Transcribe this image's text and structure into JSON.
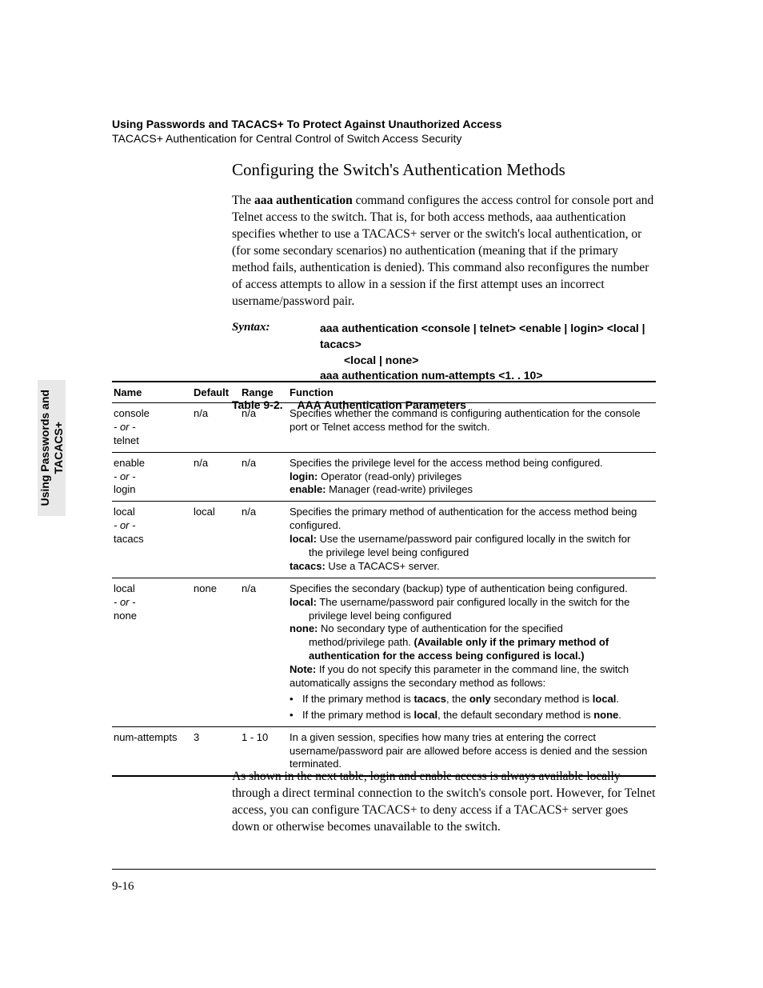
{
  "sideTab": {
    "line1": "Using Passwords and",
    "line2": "TACACS+"
  },
  "header": {
    "title": "Using Passwords and TACACS+ To Protect Against Unauthorized Access",
    "subtitle": "TACACS+ Authentication for Central Control of Switch Access Security"
  },
  "sectionTitle": "Configuring the Switch's Authentication Methods",
  "intro": {
    "pre": "The ",
    "bold": "aaa authentication",
    "post": " command configures the access control for console port and Telnet access to the switch. That is, for both access methods, aaa authentication specifies whether to use a TACACS+ server or the switch's local authentication, or (for some secondary scenarios) no authentication (meaning that if the primary method fails, authentication is denied). This command also reconfigures the number of access attempts to allow in a session if the first attempt uses an incorrect username/password pair."
  },
  "syntax": {
    "label": "Syntax:",
    "line1": "aaa authentication <console | telnet> <enable | login> <local | tacacs>",
    "line1b": "<local | none>",
    "line2": "aaa authentication num-attempts <1. . 10>"
  },
  "tableCaption": {
    "num": "Table 9-2.",
    "title": "AAA Authentication Parameters"
  },
  "cols": {
    "name": "Name",
    "default": "Default",
    "range": "Range",
    "function": "Function"
  },
  "rows": [
    {
      "n1": "console",
      "nor": "- or -",
      "n2": "telnet",
      "default": "n/a",
      "range": "n/a",
      "func": "Specifies whether the command is configuring authentication for the console port or Telnet access method for the switch."
    },
    {
      "n1": "enable",
      "nor": "- or -",
      "n2": "login",
      "default": "n/a",
      "range": "n/a",
      "func": "Specifies the privilege level for the access method being configured.",
      "sub1b": "login:",
      "sub1t": "  Operator (read-only) privileges",
      "sub2b": "enable:",
      "sub2t": " Manager (read-write) privileges"
    },
    {
      "n1": "local",
      "nor": "- or -",
      "n2": "tacacs",
      "default": "local",
      "range": "n/a",
      "func": "Specifies the primary method of authentication for the access method being configured.",
      "sub1b": "local:",
      "sub1t": " Use the username/password pair configured locally in the switch for",
      "sub1cont": "the privilege level being configured",
      "sub2b": "tacacs:",
      "sub2t": " Use a TACACS+ server."
    },
    {
      "n1": "local",
      "nor": "- or -",
      "n2": "none",
      "default": "none",
      "range": "n/a",
      "func": "Specifies the secondary (backup) type of authentication being configured.",
      "sub1b": "local:",
      "sub1t": " The username/password pair configured locally in the switch for the",
      "sub1cont": "privilege level being configured",
      "sub2b": "none:",
      "sub2t": " No secondary type of authentication for the specified",
      "sub2cont1": "method/privilege path. ",
      "sub2cont1b": "(Available only if the primary method of",
      "sub2cont2b": "authentication for the access being configured is local.)",
      "noteB": "Note:",
      "noteT": " If you do not specify this parameter in the command line, the switch automatically assigns the secondary method as follows:",
      "bullet1a": "If the primary method is ",
      "bullet1b1": "tacacs",
      "bullet1c": ", the ",
      "bullet1b2": "only",
      "bullet1d": " secondary method is ",
      "bullet1b3": "local",
      "bullet1e": ".",
      "bullet2a": "If the primary method is ",
      "bullet2b1": "local",
      "bullet2c": ", the default secondary method is ",
      "bullet2b2": "none",
      "bullet2d": "."
    },
    {
      "n1": "num-attempts",
      "default": "3",
      "range": "1 - 10",
      "func": "In a given session, specifies how many tries at entering the correct username/password pair are allowed before access is denied and the session terminated."
    }
  ],
  "afterPara": "As shown in the next table, login and enable access is always available locally through a direct terminal connection to the switch's console port. However, for Telnet access, you can configure TACACS+ to deny access if a TACACS+ server goes down or otherwise becomes unavailable to the switch.",
  "pageNum": "9-16",
  "layout": {
    "afterTableTop": 961,
    "footerRuleTop": 1086,
    "pageNumTop": 1100
  }
}
